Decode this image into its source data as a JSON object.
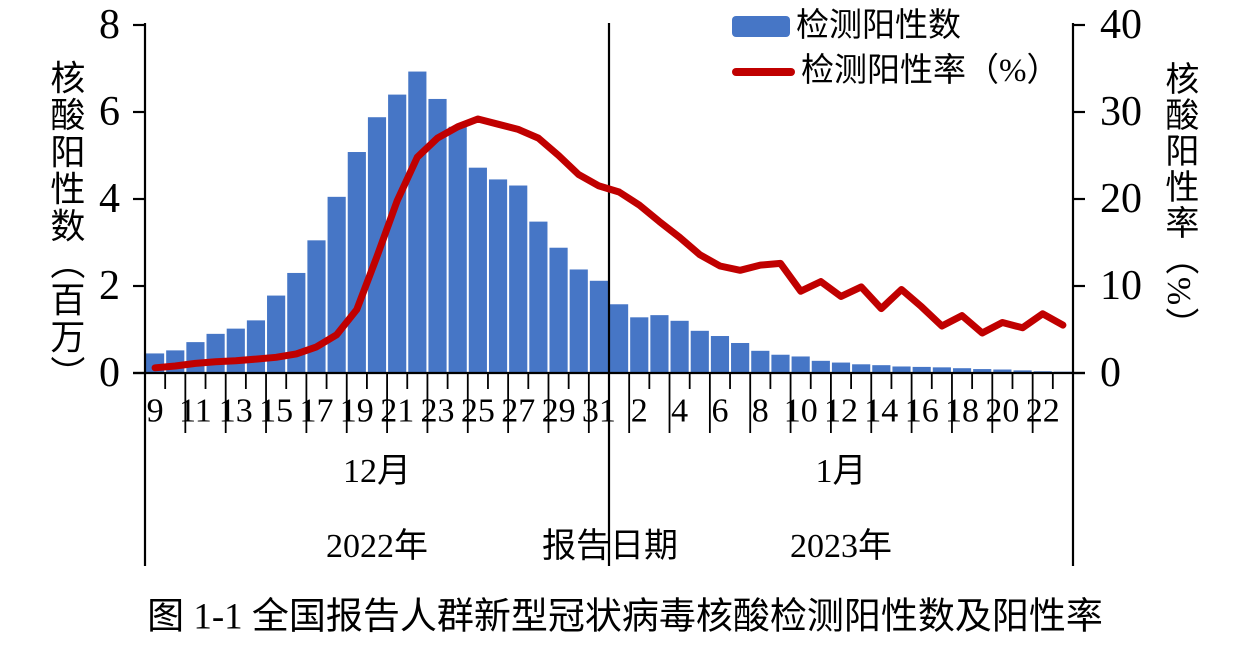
{
  "figure_caption": "图 1-1 全国报告人群新型冠状病毒核酸检测阳性数及阳性率",
  "legend": {
    "bar_label": "检测阳性数",
    "line_label": "检测阳性率（%）"
  },
  "left_axis": {
    "title": "核酸阳性数（百万）",
    "ticks": [
      "0",
      "2",
      "4",
      "6",
      "8"
    ],
    "max": 8
  },
  "right_axis": {
    "title": "核酸阳性率（%）",
    "ticks": [
      "0",
      "10",
      "20",
      "30",
      "40"
    ],
    "max": 40
  },
  "x_axis": {
    "title": "报告日期",
    "day_labels": [
      "9",
      "11",
      "13",
      "15",
      "17",
      "19",
      "21",
      "23",
      "25",
      "27",
      "29",
      "31",
      "2",
      "4",
      "6",
      "8",
      "10",
      "12",
      "14",
      "16",
      "18",
      "20",
      "22"
    ],
    "month_groups": [
      {
        "month": "12月",
        "year": "2022年"
      },
      {
        "month": "1月",
        "year": "2023年"
      }
    ]
  },
  "colors": {
    "bar": "#4676C6",
    "line": "#C00000",
    "axis": "#000000"
  },
  "chart_data": {
    "type": "combo",
    "title": "图 1-1 全国报告人群新型冠状病毒核酸检测阳性数及阳性率",
    "xlabel": "报告日期",
    "x": [
      "2022-12-09",
      "2022-12-10",
      "2022-12-11",
      "2022-12-12",
      "2022-12-13",
      "2022-12-14",
      "2022-12-15",
      "2022-12-16",
      "2022-12-17",
      "2022-12-18",
      "2022-12-19",
      "2022-12-20",
      "2022-12-21",
      "2022-12-22",
      "2022-12-23",
      "2022-12-24",
      "2022-12-25",
      "2022-12-26",
      "2022-12-27",
      "2022-12-28",
      "2022-12-29",
      "2022-12-30",
      "2022-12-31",
      "2023-01-01",
      "2023-01-02",
      "2023-01-03",
      "2023-01-04",
      "2023-01-05",
      "2023-01-06",
      "2023-01-07",
      "2023-01-08",
      "2023-01-09",
      "2023-01-10",
      "2023-01-11",
      "2023-01-12",
      "2023-01-13",
      "2023-01-14",
      "2023-01-15",
      "2023-01-16",
      "2023-01-17",
      "2023-01-18",
      "2023-01-19",
      "2023-01-20",
      "2023-01-21",
      "2023-01-22",
      "2023-01-23"
    ],
    "series": [
      {
        "name": "检测阳性数",
        "type": "bar",
        "y_axis": "left",
        "unit": "百万",
        "color": "#4676C6",
        "values": [
          0.45,
          0.52,
          0.71,
          0.9,
          1.02,
          1.21,
          1.78,
          2.3,
          3.05,
          4.05,
          5.08,
          5.88,
          6.4,
          6.93,
          6.3,
          5.66,
          4.72,
          4.45,
          4.31,
          3.48,
          2.88,
          2.38,
          2.12,
          1.58,
          1.28,
          1.33,
          1.2,
          0.97,
          0.85,
          0.69,
          0.51,
          0.42,
          0.38,
          0.28,
          0.24,
          0.2,
          0.18,
          0.15,
          0.14,
          0.13,
          0.11,
          0.09,
          0.08,
          0.06,
          0.04,
          0.03
        ]
      },
      {
        "name": "检测阳性率（%）",
        "type": "line",
        "y_axis": "right",
        "unit": "%",
        "color": "#C00000",
        "values": [
          0.6,
          0.8,
          1.1,
          1.3,
          1.4,
          1.6,
          1.8,
          2.2,
          3.0,
          4.4,
          7.3,
          13.4,
          19.8,
          24.8,
          27.0,
          28.3,
          29.2,
          28.6,
          28.0,
          27.0,
          25.0,
          22.8,
          21.5,
          20.8,
          19.3,
          17.4,
          15.6,
          13.6,
          12.3,
          11.8,
          12.4,
          12.6,
          9.4,
          10.5,
          8.8,
          9.9,
          7.4,
          9.6,
          7.6,
          5.4,
          6.6,
          4.6,
          5.8,
          5.2,
          6.8,
          5.5
        ]
      }
    ],
    "left_ylim": [
      0,
      8
    ],
    "right_ylim": [
      0,
      40
    ],
    "left_tick_step": 2,
    "right_tick_step": 10,
    "grid": false,
    "legend_position": "top-right"
  }
}
